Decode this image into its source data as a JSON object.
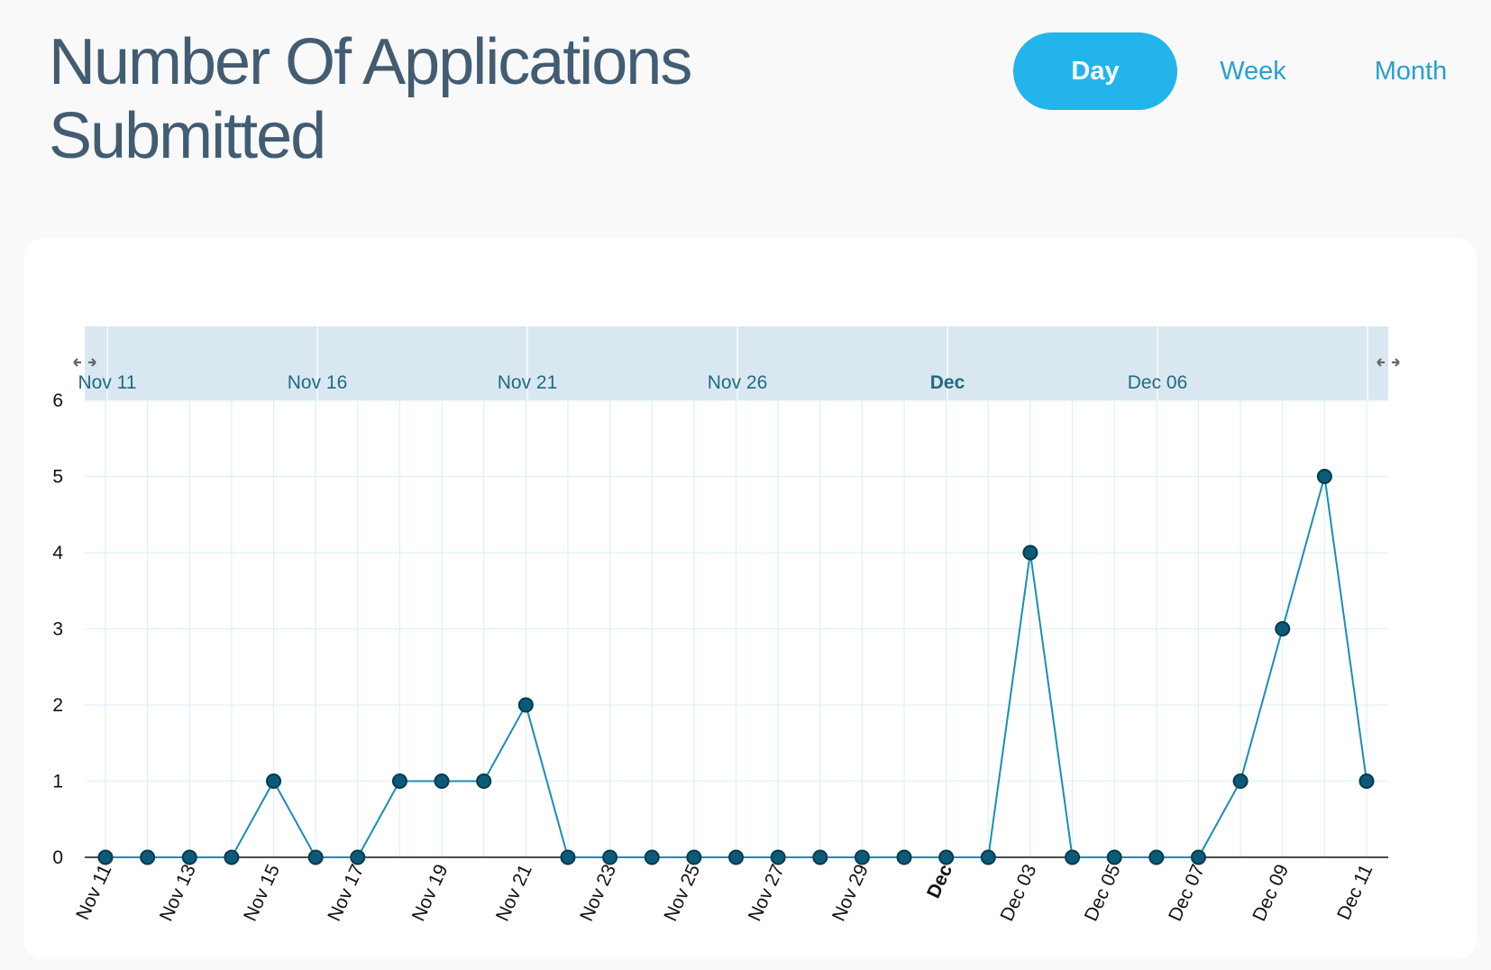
{
  "header": {
    "title": "Number Of Applications Submitted"
  },
  "toggles": [
    {
      "label": "Day",
      "active": true
    },
    {
      "label": "Week",
      "active": false
    },
    {
      "label": "Month",
      "active": false
    }
  ],
  "colors": {
    "title": "#425c72",
    "active_toggle_bg": "#23b4ec",
    "toggle_text": "#2a9fd0",
    "line": "#1a8db5",
    "marker_fill": "#0b5b78",
    "marker_stroke": "#063a4e",
    "grid": "#dff1fa",
    "range_bg": "#d9e8f0",
    "range_text": "#1f6a86"
  },
  "chart_data": {
    "type": "line",
    "title": "Number Of Applications Submitted",
    "xlabel": "",
    "ylabel": "",
    "grid": true,
    "x_axis": "date",
    "x": [
      "Nov 11",
      "Nov 12",
      "Nov 13",
      "Nov 14",
      "Nov 15",
      "Nov 16",
      "Nov 17",
      "Nov 18",
      "Nov 19",
      "Nov 20",
      "Nov 21",
      "Nov 22",
      "Nov 23",
      "Nov 24",
      "Nov 25",
      "Nov 26",
      "Nov 27",
      "Nov 28",
      "Nov 29",
      "Nov 30",
      "Dec 01",
      "Dec 02",
      "Dec 03",
      "Dec 04",
      "Dec 05",
      "Dec 06",
      "Dec 07",
      "Dec 08",
      "Dec 09",
      "Dec 10",
      "Dec 11"
    ],
    "values": [
      0,
      0,
      0,
      0,
      1,
      0,
      0,
      1,
      1,
      1,
      2,
      0,
      0,
      0,
      0,
      0,
      0,
      0,
      0,
      0,
      0,
      0,
      4,
      0,
      0,
      0,
      0,
      1,
      3,
      5,
      1
    ],
    "ylim": [
      0,
      6
    ],
    "y_ticks": [
      0,
      1,
      2,
      3,
      4,
      5,
      6
    ],
    "x_tick_labels": [
      "Nov 11",
      "Nov 13",
      "Nov 15",
      "Nov 17",
      "Nov 19",
      "Nov 21",
      "Nov 23",
      "Nov 25",
      "Nov 27",
      "Nov 29",
      "Dec",
      "Dec 03",
      "Dec 05",
      "Dec 07",
      "Dec 09",
      "Dec 11"
    ],
    "x_tick_bold": [
      "Dec"
    ],
    "range_slider": {
      "labels": [
        "Nov 11",
        "Nov 16",
        "Nov 21",
        "Nov 26",
        "Dec",
        "Dec 06"
      ],
      "bold": [
        "Dec"
      ]
    }
  }
}
